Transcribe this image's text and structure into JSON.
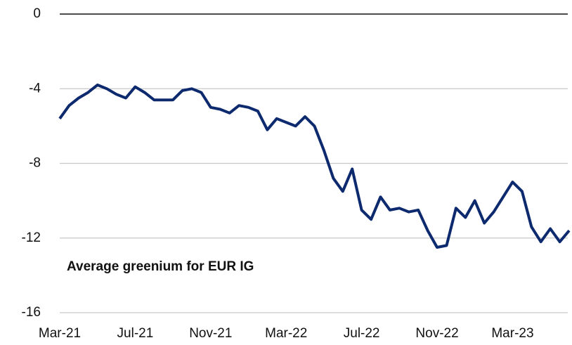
{
  "chart_data": {
    "type": "line",
    "annotation": "Average greenium for EUR IG",
    "categories": [
      "Mar-21",
      null,
      null,
      null,
      null,
      null,
      null,
      null,
      "Jul-21",
      null,
      null,
      null,
      null,
      null,
      null,
      null,
      "Nov-21",
      null,
      null,
      null,
      null,
      null,
      null,
      null,
      "Mar-22",
      null,
      null,
      null,
      null,
      null,
      null,
      null,
      "Jul-22",
      null,
      null,
      null,
      null,
      null,
      null,
      null,
      "Nov-22",
      null,
      null,
      null,
      null,
      null,
      null,
      null,
      "Mar-23",
      null,
      null,
      null,
      null,
      null,
      null
    ],
    "series": [
      {
        "color": "#0d2a6e",
        "values": [
          -5.6,
          -4.9,
          -4.5,
          -4.2,
          -3.8,
          -4.0,
          -4.3,
          -4.5,
          -3.9,
          -4.2,
          -4.6,
          -4.6,
          -4.6,
          -4.1,
          -4.0,
          -4.2,
          -5.0,
          -5.1,
          -5.3,
          -4.9,
          -5.0,
          -5.2,
          -6.2,
          -5.6,
          -5.8,
          -6.0,
          -5.5,
          -6.0,
          -7.3,
          -8.8,
          -9.5,
          -8.3,
          -10.5,
          -11.0,
          -9.8,
          -10.5,
          -10.4,
          -10.6,
          -10.5,
          -11.6,
          -12.5,
          -12.4,
          -10.4,
          -10.9,
          -10.0,
          -11.2,
          -10.6,
          -9.8,
          -9.0,
          -9.5,
          -11.4,
          -12.2,
          -11.5,
          -12.2,
          -11.6
        ]
      }
    ],
    "ylim": [
      -16,
      0
    ],
    "yticks": [
      0,
      -4,
      -8,
      -12,
      -16
    ],
    "grid": true
  }
}
